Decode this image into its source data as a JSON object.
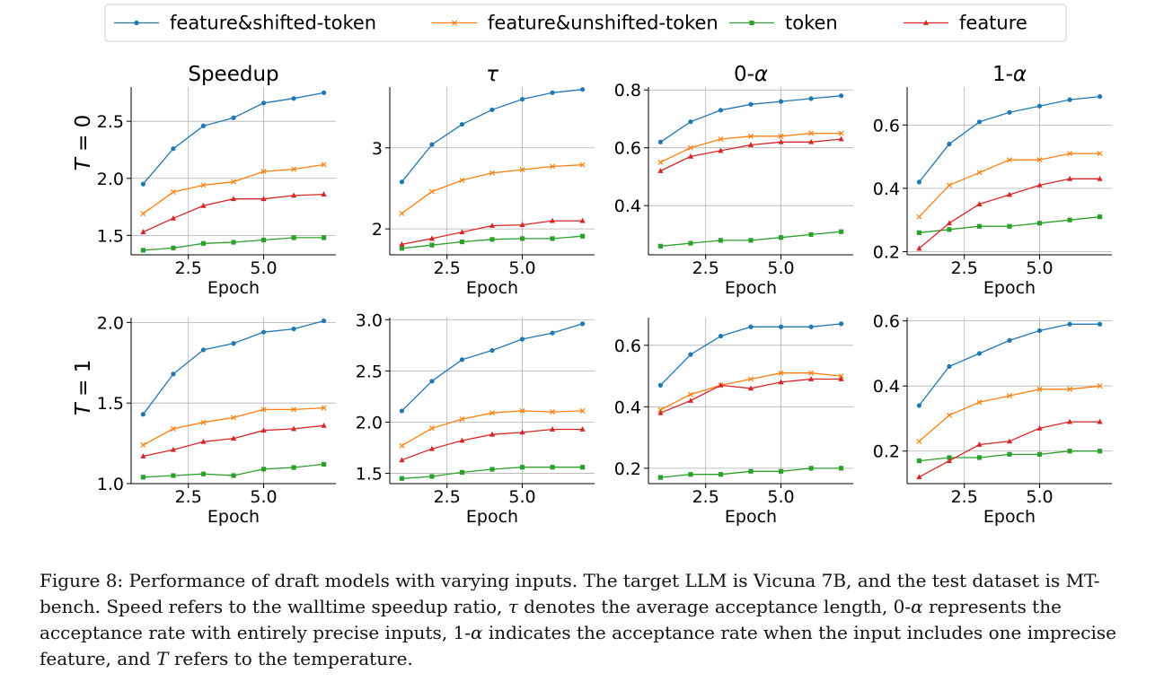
{
  "legend": {
    "entries": [
      {
        "label": "feature&shifted-token",
        "color": "#1f77b4",
        "marker": "circle"
      },
      {
        "label": "feature&unshifted-token",
        "color": "#ff7f0e",
        "marker": "x"
      },
      {
        "label": "token",
        "color": "#2ca02c",
        "marker": "square"
      },
      {
        "label": "feature",
        "color": "#d62728",
        "marker": "triangle"
      }
    ]
  },
  "rows": [
    {
      "label_var": "T",
      "label_eq": " = 0"
    },
    {
      "label_var": "T",
      "label_eq": " = 1"
    }
  ],
  "columns": [
    {
      "title": "Speedup"
    },
    {
      "title": "τ"
    },
    {
      "title": "0-α"
    },
    {
      "title": "1-α"
    }
  ],
  "chart_data": [
    {
      "type": "line",
      "title": "Speedup",
      "row": "T = 0",
      "xlabel": "Epoch",
      "ylabel": "",
      "x": [
        1,
        2,
        3,
        4,
        5,
        6,
        7
      ],
      "xticks": [
        2.5,
        5.0
      ],
      "xtick_labels": [
        "2.5",
        "5.0"
      ],
      "xlim": [
        0.6,
        7.4
      ],
      "ylim": [
        1.33,
        2.8
      ],
      "yticks": [
        1.5,
        2.0,
        2.5
      ],
      "ytick_labels": [
        "1.5",
        "2.0",
        "2.5"
      ],
      "grid": true,
      "series": [
        {
          "name": "feature&shifted-token",
          "values": [
            1.95,
            2.26,
            2.46,
            2.53,
            2.66,
            2.7,
            2.75
          ]
        },
        {
          "name": "feature&unshifted-token",
          "values": [
            1.69,
            1.88,
            1.94,
            1.97,
            2.06,
            2.08,
            2.12
          ]
        },
        {
          "name": "token",
          "values": [
            1.37,
            1.39,
            1.43,
            1.44,
            1.46,
            1.48,
            1.48
          ]
        },
        {
          "name": "feature",
          "values": [
            1.53,
            1.65,
            1.76,
            1.82,
            1.82,
            1.85,
            1.86
          ]
        }
      ]
    },
    {
      "type": "line",
      "title": "τ",
      "row": "T = 0",
      "xlabel": "Epoch",
      "ylabel": "",
      "x": [
        1,
        2,
        3,
        4,
        5,
        6,
        7
      ],
      "xticks": [
        2.5,
        5.0
      ],
      "xtick_labels": [
        "2.5",
        "5.0"
      ],
      "xlim": [
        0.6,
        7.4
      ],
      "ylim": [
        1.68,
        3.75
      ],
      "yticks": [
        2,
        3
      ],
      "ytick_labels": [
        "2",
        "3"
      ],
      "grid": true,
      "series": [
        {
          "name": "feature&shifted-token",
          "values": [
            2.58,
            3.04,
            3.29,
            3.47,
            3.6,
            3.68,
            3.72
          ]
        },
        {
          "name": "feature&unshifted-token",
          "values": [
            2.19,
            2.46,
            2.6,
            2.69,
            2.73,
            2.77,
            2.79
          ]
        },
        {
          "name": "token",
          "values": [
            1.76,
            1.8,
            1.84,
            1.87,
            1.88,
            1.88,
            1.91
          ]
        },
        {
          "name": "feature",
          "values": [
            1.81,
            1.88,
            1.96,
            2.04,
            2.05,
            2.1,
            2.1
          ]
        }
      ]
    },
    {
      "type": "line",
      "title": "0-α",
      "row": "T = 0",
      "xlabel": "Epoch",
      "ylabel": "",
      "x": [
        1,
        2,
        3,
        4,
        5,
        6,
        7
      ],
      "xticks": [
        2.5,
        5.0
      ],
      "xtick_labels": [
        "2.5",
        "5.0"
      ],
      "xlim": [
        0.6,
        7.4
      ],
      "ylim": [
        0.23,
        0.81
      ],
      "yticks": [
        0.4,
        0.6,
        0.8
      ],
      "ytick_labels": [
        "0.4",
        "0.6",
        "0.8"
      ],
      "grid": true,
      "series": [
        {
          "name": "feature&shifted-token",
          "values": [
            0.62,
            0.69,
            0.73,
            0.75,
            0.76,
            0.77,
            0.78
          ]
        },
        {
          "name": "feature&unshifted-token",
          "values": [
            0.55,
            0.6,
            0.63,
            0.64,
            0.64,
            0.65,
            0.65
          ]
        },
        {
          "name": "token",
          "values": [
            0.26,
            0.27,
            0.28,
            0.28,
            0.29,
            0.3,
            0.31
          ]
        },
        {
          "name": "feature",
          "values": [
            0.52,
            0.57,
            0.59,
            0.61,
            0.62,
            0.62,
            0.63
          ]
        }
      ]
    },
    {
      "type": "line",
      "title": "1-α",
      "row": "T = 0",
      "xlabel": "Epoch",
      "ylabel": "",
      "x": [
        1,
        2,
        3,
        4,
        5,
        6,
        7
      ],
      "xticks": [
        2.5,
        5.0
      ],
      "xtick_labels": [
        "2.5",
        "5.0"
      ],
      "xlim": [
        0.6,
        7.4
      ],
      "ylim": [
        0.19,
        0.72
      ],
      "yticks": [
        0.2,
        0.4,
        0.6
      ],
      "ytick_labels": [
        "0.2",
        "0.4",
        "0.6"
      ],
      "grid": true,
      "series": [
        {
          "name": "feature&shifted-token",
          "values": [
            0.42,
            0.54,
            0.61,
            0.64,
            0.66,
            0.68,
            0.69
          ]
        },
        {
          "name": "feature&unshifted-token",
          "values": [
            0.31,
            0.41,
            0.45,
            0.49,
            0.49,
            0.51,
            0.51
          ]
        },
        {
          "name": "token",
          "values": [
            0.26,
            0.27,
            0.28,
            0.28,
            0.29,
            0.3,
            0.31
          ]
        },
        {
          "name": "feature",
          "values": [
            0.21,
            0.29,
            0.35,
            0.38,
            0.41,
            0.43,
            0.43
          ]
        }
      ]
    },
    {
      "type": "line",
      "title": "Speedup",
      "row": "T = 1",
      "xlabel": "Epoch",
      "ylabel": "",
      "x": [
        1,
        2,
        3,
        4,
        5,
        6,
        7
      ],
      "xticks": [
        2.5,
        5.0
      ],
      "xtick_labels": [
        "2.5",
        "5.0"
      ],
      "xlim": [
        0.6,
        7.4
      ],
      "ylim": [
        1.0,
        2.03
      ],
      "yticks": [
        1.0,
        1.5,
        2.0
      ],
      "ytick_labels": [
        "1.0",
        "1.5",
        "2.0"
      ],
      "grid": true,
      "series": [
        {
          "name": "feature&shifted-token",
          "values": [
            1.43,
            1.68,
            1.83,
            1.87,
            1.94,
            1.96,
            2.01
          ]
        },
        {
          "name": "feature&unshifted-token",
          "values": [
            1.24,
            1.34,
            1.38,
            1.41,
            1.46,
            1.46,
            1.47
          ]
        },
        {
          "name": "token",
          "values": [
            1.04,
            1.05,
            1.06,
            1.05,
            1.09,
            1.1,
            1.12
          ]
        },
        {
          "name": "feature",
          "values": [
            1.17,
            1.21,
            1.26,
            1.28,
            1.33,
            1.34,
            1.36
          ]
        }
      ]
    },
    {
      "type": "line",
      "title": "τ",
      "row": "T = 1",
      "xlabel": "Epoch",
      "ylabel": "",
      "x": [
        1,
        2,
        3,
        4,
        5,
        6,
        7
      ],
      "xticks": [
        2.5,
        5.0
      ],
      "xtick_labels": [
        "2.5",
        "5.0"
      ],
      "xlim": [
        0.6,
        7.4
      ],
      "ylim": [
        1.4,
        3.02
      ],
      "yticks": [
        1.5,
        2.0,
        2.5,
        3.0
      ],
      "ytick_labels": [
        "1.5",
        "2.0",
        "2.5",
        "3.0"
      ],
      "grid": true,
      "series": [
        {
          "name": "feature&shifted-token",
          "values": [
            2.11,
            2.4,
            2.61,
            2.7,
            2.81,
            2.87,
            2.96
          ]
        },
        {
          "name": "feature&unshifted-token",
          "values": [
            1.77,
            1.94,
            2.03,
            2.09,
            2.11,
            2.1,
            2.11
          ]
        },
        {
          "name": "token",
          "values": [
            1.45,
            1.47,
            1.51,
            1.54,
            1.56,
            1.56,
            1.56
          ]
        },
        {
          "name": "feature",
          "values": [
            1.63,
            1.74,
            1.82,
            1.88,
            1.9,
            1.93,
            1.93
          ]
        }
      ]
    },
    {
      "type": "line",
      "title": "0-α",
      "row": "T = 1",
      "xlabel": "Epoch",
      "ylabel": "",
      "x": [
        1,
        2,
        3,
        4,
        5,
        6,
        7
      ],
      "xticks": [
        2.5,
        5.0
      ],
      "xtick_labels": [
        "2.5",
        "5.0"
      ],
      "xlim": [
        0.6,
        7.4
      ],
      "ylim": [
        0.15,
        0.69
      ],
      "yticks": [
        0.2,
        0.4,
        0.6
      ],
      "ytick_labels": [
        "0.2",
        "0.4",
        "0.6"
      ],
      "grid": true,
      "series": [
        {
          "name": "feature&shifted-token",
          "values": [
            0.47,
            0.57,
            0.63,
            0.66,
            0.66,
            0.66,
            0.67
          ]
        },
        {
          "name": "feature&unshifted-token",
          "values": [
            0.39,
            0.44,
            0.47,
            0.49,
            0.51,
            0.51,
            0.5
          ]
        },
        {
          "name": "token",
          "values": [
            0.17,
            0.18,
            0.18,
            0.19,
            0.19,
            0.2,
            0.2
          ]
        },
        {
          "name": "feature",
          "values": [
            0.38,
            0.42,
            0.47,
            0.46,
            0.48,
            0.49,
            0.49
          ]
        }
      ]
    },
    {
      "type": "line",
      "title": "1-α",
      "row": "T = 1",
      "xlabel": "Epoch",
      "ylabel": "",
      "x": [
        1,
        2,
        3,
        4,
        5,
        6,
        7
      ],
      "xticks": [
        2.5,
        5.0
      ],
      "xtick_labels": [
        "2.5",
        "5.0"
      ],
      "xlim": [
        0.6,
        7.4
      ],
      "ylim": [
        0.1,
        0.61
      ],
      "yticks": [
        0.2,
        0.4,
        0.6
      ],
      "ytick_labels": [
        "0.2",
        "0.4",
        "0.6"
      ],
      "grid": true,
      "series": [
        {
          "name": "feature&shifted-token",
          "values": [
            0.34,
            0.46,
            0.5,
            0.54,
            0.57,
            0.59,
            0.59
          ]
        },
        {
          "name": "feature&unshifted-token",
          "values": [
            0.23,
            0.31,
            0.35,
            0.37,
            0.39,
            0.39,
            0.4
          ]
        },
        {
          "name": "token",
          "values": [
            0.17,
            0.18,
            0.18,
            0.19,
            0.19,
            0.2,
            0.2
          ]
        },
        {
          "name": "feature",
          "values": [
            0.12,
            0.17,
            0.22,
            0.23,
            0.27,
            0.29,
            0.29
          ]
        }
      ]
    }
  ],
  "caption": {
    "label": "Figure 8:",
    "part1": " Performance of draft models with varying inputs. The target LLM is Vicuna 7B, and the test dataset is MT-bench. Speed refers to the walltime speedup ratio, ",
    "tau": "τ",
    "part2": " denotes the average acceptance length, 0-",
    "alpha1": "α",
    "part3": " represents the acceptance rate with entirely precise inputs, 1-",
    "alpha2": "α",
    "part4": " indicates the acceptance rate when the input includes one imprecise feature, and ",
    "T": "T",
    "part5": " refers to the temperature."
  }
}
